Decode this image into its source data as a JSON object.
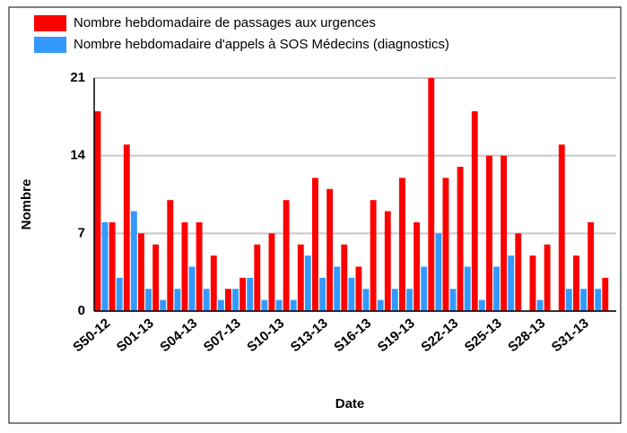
{
  "chart_data": {
    "type": "bar",
    "xlabel": "Date",
    "ylabel": "Nombre",
    "categories": [
      "S50-12",
      null,
      null,
      "S01-13",
      null,
      null,
      "S04-13",
      null,
      null,
      "S07-13",
      null,
      null,
      "S10-13",
      null,
      null,
      "S13-13",
      null,
      null,
      "S16-13",
      null,
      null,
      "S19-13",
      null,
      null,
      "S22-13",
      null,
      null,
      "S25-13",
      null,
      null,
      "S28-13",
      null,
      null,
      "S31-13",
      null,
      null
    ],
    "series": [
      {
        "name": "Nombre hebdomadaire de passages aux urgences",
        "color": "#ff0000",
        "values": [
          18,
          8,
          15,
          7,
          6,
          10,
          8,
          8,
          5,
          2,
          3,
          6,
          7,
          10,
          6,
          12,
          11,
          6,
          4,
          10,
          9,
          12,
          8,
          21,
          12,
          13,
          18,
          14,
          14,
          7,
          5,
          6,
          15,
          5,
          8,
          3
        ]
      },
      {
        "name": "Nombre hebdomadaire d'appels à SOS Médecins (diagnostics)",
        "color": "#3399ff",
        "values": [
          8,
          3,
          9,
          2,
          1,
          2,
          4,
          2,
          1,
          2,
          3,
          1,
          1,
          1,
          5,
          3,
          4,
          3,
          2,
          1,
          2,
          2,
          4,
          7,
          2,
          4,
          1,
          4,
          5,
          0,
          1,
          0,
          2,
          2,
          2,
          0
        ]
      }
    ],
    "ylim": [
      0,
      21
    ],
    "yticks": [
      0,
      7,
      14,
      21
    ],
    "grid": true
  }
}
